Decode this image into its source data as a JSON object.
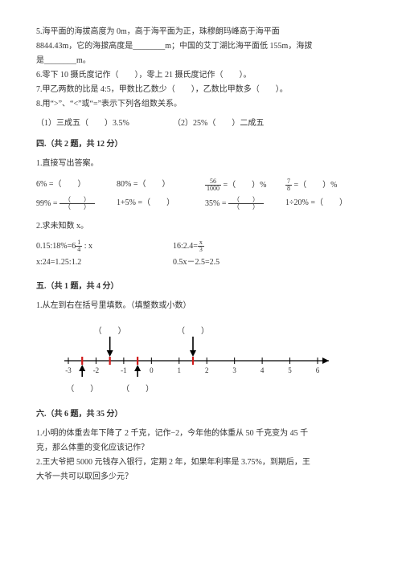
{
  "top": {
    "q5a": "5.海平面的海拔高度为 0m，高于海平面为正，珠穆朗玛峰高于海平面",
    "q5b": "8844.43m，它的海拔高度是________m；中国的艾丁湖比海平面低 155m，海拔",
    "q5c": "是________m。",
    "q6": "6.零下 10 摄氏度记作（　　），零上 21 摄氏度记作（　　）。",
    "q7": "7.甲乙两数的比是 4:5，甲数比乙数少（　　），乙数比甲数多（　　）。",
    "q8": "8.用“>”、“<”或“=”表示下列各组数关系。",
    "q8_1a": "（1）三成五（　　）3.5%",
    "q8_2a": "（2）25%（　　）二成五"
  },
  "sec4": {
    "title": "四.（共 2 题，共 12 分）",
    "q1": "1.直接写出答案。",
    "r1a": "6% =（　　）",
    "r1b": "80% =（　　）",
    "r1c_pre": "",
    "r1c_frac_n": "56",
    "r1c_frac_d": "1000",
    "r1c_post": " =（　　）%",
    "r1d_frac_n": "7",
    "r1d_frac_d": "8",
    "r1d_post": " =（　　）%",
    "r2a_pre": "99% = ",
    "r2a_pn": "（　　）",
    "r2a_pd": "（　　）",
    "r2b": "1+5% =（　　）",
    "r2c_pre": "35% = ",
    "r2c_pn": "（　　）",
    "r2c_pd": "（　　）",
    "r2d": "1÷20% =（　　）",
    "q2": "2.求未知数 x。",
    "e1a_pre": "0.15:18%=6",
    "e1a_fn": "1",
    "e1a_fd": "4",
    "e1a_post": " : x",
    "e1b_pre": "16:2.4=",
    "e1b_fn": "x",
    "e1b_fd": "3",
    "e2a": "x:24=1.25:1.2",
    "e2b": "0.5x－2.5=2.5"
  },
  "sec5": {
    "title": "五.（共 1 题，共 4 分）",
    "q1": "1.从左到右在括号里填数。（填整数或小数）"
  },
  "sec6": {
    "title": "六.（共 6 题，共 35 分）",
    "q1a": "1.小明的体重去年下降了 2 千克，记作−2，今年他的体重从 50 千克变为 45 千",
    "q1b": "克，那么体重的变化应该记作？",
    "q2a": "2.王大爷把 5000 元钱存入银行，定期 2 年，如果年利率是 3.75%，到期后，王",
    "q2b": "大爷一共可以取回多少元？"
  },
  "numberline": {
    "min": -3,
    "max": 6,
    "ticks": [
      -3,
      -2,
      -1,
      0,
      1,
      2,
      3,
      4,
      5,
      6
    ],
    "labels": [
      -3,
      -2,
      -1,
      0,
      1,
      2,
      3,
      4,
      5,
      6
    ],
    "top_paren_positions": [
      -1.5,
      1.5
    ],
    "bot_paren_positions": [
      -2.5,
      -0.5
    ],
    "red_positions": [
      -2.5,
      -1.5,
      -0.5,
      1.5
    ],
    "colors": {
      "axis": "#000000",
      "red": "#d11919",
      "text": "#333333"
    }
  }
}
